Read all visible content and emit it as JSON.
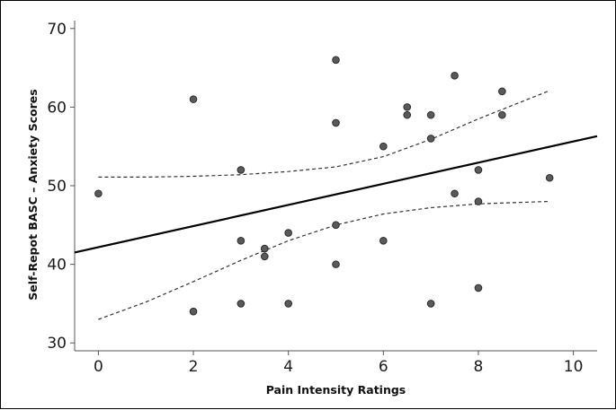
{
  "chart_data": {
    "type": "scatter",
    "xlabel": "Pain Intensity Ratings",
    "ylabel": "Self-Repot BASC – Anxiety Scores",
    "xlim": [
      -0.5,
      10.5
    ],
    "ylim": [
      29,
      71
    ],
    "xticks": [
      0,
      2,
      4,
      6,
      8,
      10
    ],
    "yticks": [
      30,
      40,
      50,
      60,
      70
    ],
    "x_tick_labels": [
      "0",
      "2",
      "4",
      "6",
      "8",
      "10"
    ],
    "y_tick_labels": [
      "30",
      "40",
      "50",
      "60",
      "70"
    ],
    "grid": false,
    "points": [
      {
        "x": 0,
        "y": 49
      },
      {
        "x": 2,
        "y": 61
      },
      {
        "x": 2,
        "y": 34
      },
      {
        "x": 3,
        "y": 52
      },
      {
        "x": 3,
        "y": 43
      },
      {
        "x": 3,
        "y": 35
      },
      {
        "x": 3.5,
        "y": 42
      },
      {
        "x": 3.5,
        "y": 41
      },
      {
        "x": 4,
        "y": 44
      },
      {
        "x": 4,
        "y": 35
      },
      {
        "x": 5,
        "y": 66
      },
      {
        "x": 5,
        "y": 58
      },
      {
        "x": 5,
        "y": 45
      },
      {
        "x": 5,
        "y": 40
      },
      {
        "x": 6,
        "y": 55
      },
      {
        "x": 6,
        "y": 43
      },
      {
        "x": 6.5,
        "y": 60
      },
      {
        "x": 6.5,
        "y": 59
      },
      {
        "x": 7,
        "y": 59
      },
      {
        "x": 7,
        "y": 56
      },
      {
        "x": 7,
        "y": 35
      },
      {
        "x": 7.5,
        "y": 64
      },
      {
        "x": 7.5,
        "y": 49
      },
      {
        "x": 8,
        "y": 52
      },
      {
        "x": 8,
        "y": 48
      },
      {
        "x": 8,
        "y": 37
      },
      {
        "x": 8.5,
        "y": 62
      },
      {
        "x": 8.5,
        "y": 59
      },
      {
        "x": 9.5,
        "y": 51
      }
    ],
    "fit_line": [
      {
        "x": -0.5,
        "y": 41.5
      },
      {
        "x": 10.5,
        "y": 56.3
      }
    ],
    "ci_upper": [
      {
        "x": 0,
        "y": 51.1
      },
      {
        "x": 1,
        "y": 51.1
      },
      {
        "x": 2,
        "y": 51.2
      },
      {
        "x": 3,
        "y": 51.4
      },
      {
        "x": 4,
        "y": 51.8
      },
      {
        "x": 5,
        "y": 52.4
      },
      {
        "x": 6,
        "y": 53.7
      },
      {
        "x": 7,
        "y": 55.9
      },
      {
        "x": 8,
        "y": 58.5
      },
      {
        "x": 9.5,
        "y": 62.1
      }
    ],
    "ci_lower": [
      {
        "x": 0,
        "y": 33.0
      },
      {
        "x": 1,
        "y": 35.2
      },
      {
        "x": 2,
        "y": 37.8
      },
      {
        "x": 3,
        "y": 40.5
      },
      {
        "x": 4,
        "y": 43.0
      },
      {
        "x": 5,
        "y": 45.0
      },
      {
        "x": 6,
        "y": 46.4
      },
      {
        "x": 7,
        "y": 47.2
      },
      {
        "x": 8,
        "y": 47.7
      },
      {
        "x": 9.5,
        "y": 48.0
      }
    ],
    "colors": {
      "point_fill": "#5a5a5a",
      "point_stroke": "#2b2b2b",
      "fit_line": "#000000",
      "ci_line": "#333333",
      "axis": "#555555"
    }
  }
}
